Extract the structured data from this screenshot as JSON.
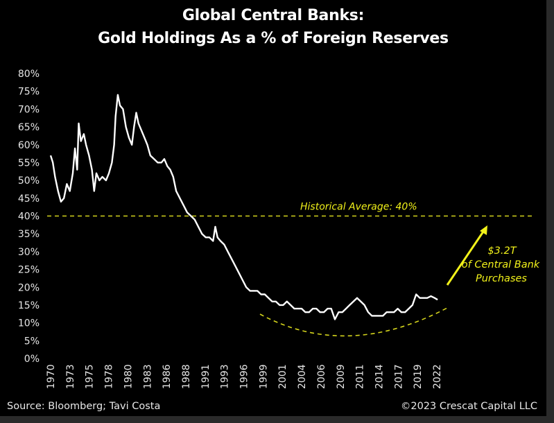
{
  "chart_data": {
    "type": "line",
    "title": "Global Central Banks:",
    "subtitle": "Gold Holdings As a % of Foreign Reserves",
    "xlabel": "",
    "ylabel": "",
    "ylim": [
      0,
      80
    ],
    "xlim": [
      1970,
      2023
    ],
    "grid": false,
    "y_ticks": [
      "0%",
      "5%",
      "10%",
      "15%",
      "20%",
      "25%",
      "30%",
      "35%",
      "40%",
      "45%",
      "50%",
      "55%",
      "60%",
      "65%",
      "70%",
      "75%",
      "80%"
    ],
    "y_tick_values": [
      0,
      5,
      10,
      15,
      20,
      25,
      30,
      35,
      40,
      45,
      50,
      55,
      60,
      65,
      70,
      75,
      80
    ],
    "x_ticks": [
      "1970",
      "1973",
      "1975",
      "1978",
      "1980",
      "1983",
      "1986",
      "1988",
      "1991",
      "1993",
      "1996",
      "1999",
      "2001",
      "2004",
      "2006",
      "2009",
      "2011",
      "2014",
      "2017",
      "2019",
      "2022"
    ],
    "series": [
      {
        "name": "Gold Holdings As a % of Foreign Reserves",
        "color": "#ffffff",
        "x": [
          1970,
          1970.3,
          1970.6,
          1971,
          1971.4,
          1971.8,
          1972.2,
          1972.6,
          1973,
          1973.3,
          1973.6,
          1973.8,
          1974.1,
          1974.5,
          1974.8,
          1975.2,
          1975.6,
          1975.9,
          1976.2,
          1976.6,
          1977,
          1977.5,
          1977.9,
          1978.3,
          1978.6,
          1978.8,
          1979.1,
          1979.4,
          1979.8,
          1980.2,
          1980.6,
          1981,
          1981.3,
          1981.6,
          1981.9,
          1982.3,
          1982.7,
          1983.1,
          1983.5,
          1984,
          1984.5,
          1985,
          1985.4,
          1985.8,
          1986.2,
          1986.6,
          1987,
          1987.5,
          1988,
          1988.5,
          1989,
          1989.5,
          1990,
          1990.5,
          1991,
          1991.5,
          1992,
          1992.3,
          1992.6,
          1993,
          1993.5,
          1994,
          1994.5,
          1995,
          1995.5,
          1996,
          1996.5,
          1997,
          1997.5,
          1998,
          1998.5,
          1999,
          1999.5,
          2000,
          2000.5,
          2001,
          2001.5,
          2002,
          2002.5,
          2003,
          2003.5,
          2004,
          2004.5,
          2005,
          2005.5,
          2006,
          2006.5,
          2007,
          2007.5,
          2008,
          2008.5,
          2009,
          2009.5,
          2010,
          2010.5,
          2011,
          2011.5,
          2012,
          2012.5,
          2013,
          2013.5,
          2014,
          2014.5,
          2015,
          2015.5,
          2016,
          2016.5,
          2017,
          2017.5,
          2018,
          2018.5,
          2019,
          2019.5,
          2020,
          2020.5,
          2021,
          2021.5,
          2022,
          2022.4
        ],
        "values": [
          57,
          55,
          51,
          47,
          44,
          45,
          49,
          47,
          52,
          59,
          53,
          66,
          61,
          63,
          60,
          57,
          53,
          47,
          52,
          50,
          51,
          50,
          52,
          55,
          60,
          68,
          74,
          71,
          70,
          65,
          62,
          60,
          65,
          69,
          66,
          64,
          62,
          60,
          57,
          56,
          55,
          55,
          56,
          54,
          53,
          51,
          47,
          45,
          43,
          41,
          40,
          39,
          37,
          35,
          34,
          34,
          33,
          37,
          34,
          33,
          32,
          30,
          28,
          26,
          24,
          22,
          20,
          19,
          19,
          19,
          18,
          18,
          17,
          16,
          16,
          15,
          15,
          16,
          15,
          14,
          14,
          14,
          13,
          13,
          14,
          14,
          13,
          13,
          14,
          14,
          11,
          13,
          13,
          14,
          15,
          16,
          17,
          16,
          15,
          13,
          12,
          12,
          12,
          12,
          13,
          13,
          13,
          14,
          13,
          13,
          14,
          15,
          18,
          17,
          17,
          17,
          17.5,
          17,
          16.5
        ]
      }
    ],
    "annotations": {
      "average_label": "Historical Average: 40%",
      "average_value": 40,
      "purchase_line1": "$3.2T",
      "purchase_line2": "of Central Bank",
      "purchase_line3": "Purchases"
    },
    "colors": {
      "line": "#ffffff",
      "annotation": "#f2f21a",
      "background": "#000000"
    },
    "source": "Source: Bloomberg; Tavi Costa",
    "copyright": "©2023 Crescat Capital LLC"
  }
}
